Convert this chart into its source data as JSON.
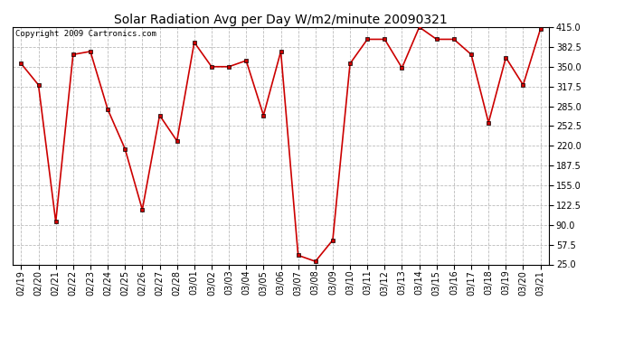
{
  "title": "Solar Radiation Avg per Day W/m2/minute 20090321",
  "copyright": "Copyright 2009 Cartronics.com",
  "labels": [
    "02/19",
    "02/20",
    "02/21",
    "02/22",
    "02/23",
    "02/24",
    "02/25",
    "02/26",
    "02/27",
    "02/28",
    "03/01",
    "03/02",
    "03/03",
    "03/04",
    "03/05",
    "03/06",
    "03/07",
    "03/08",
    "03/09",
    "03/10",
    "03/11",
    "03/12",
    "03/13",
    "03/14",
    "03/15",
    "03/16",
    "03/17",
    "03/18",
    "03/19",
    "03/20",
    "03/21"
  ],
  "values": [
    355,
    320,
    95,
    370,
    375,
    280,
    215,
    115,
    270,
    228,
    390,
    350,
    350,
    360,
    270,
    375,
    40,
    30,
    65,
    355,
    395,
    395,
    348,
    415,
    395,
    395,
    370,
    258,
    365,
    320,
    412
  ],
  "line_color": "#cc0000",
  "marker_color": "#000000",
  "bg_color": "#ffffff",
  "plot_bg_color": "#ffffff",
  "grid_color": "#bbbbbb",
  "ylim_min": 25.0,
  "ylim_max": 415.0,
  "ytick_step": 32.5,
  "title_fontsize": 10,
  "tick_fontsize": 7,
  "copyright_fontsize": 6.5
}
